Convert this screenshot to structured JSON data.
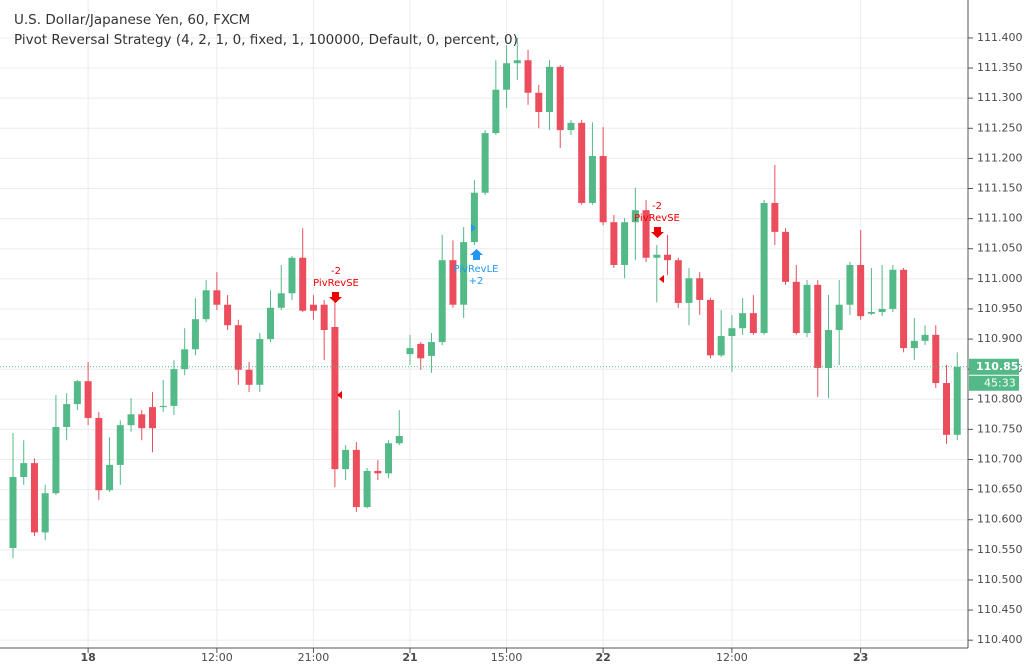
{
  "chart_data": {
    "type": "candlestick",
    "title": "U.S. Dollar/Japanese Yen, 60, FXCM",
    "subtitle": "Pivot Reversal Strategy (4, 2, 1, 0, fixed, 1, 100000, Default, 0, percent, 0)",
    "up_color": "#53b987",
    "down_color": "#eb4d5c",
    "grid": true,
    "categories": [
      null,
      null,
      null,
      null,
      null,
      null,
      null,
      "18",
      null,
      null,
      null,
      null,
      null,
      null,
      null,
      null,
      null,
      null,
      null,
      "12:00",
      null,
      null,
      null,
      null,
      null,
      null,
      null,
      null,
      "21:00",
      null,
      null,
      null,
      null,
      null,
      null,
      null,
      null,
      "21",
      null,
      null,
      null,
      null,
      null,
      null,
      null,
      null,
      "15:00",
      null,
      null,
      null,
      null,
      null,
      null,
      null,
      null,
      "22",
      null,
      null,
      null,
      null,
      null,
      null,
      null,
      null,
      null,
      null,
      null,
      "12:00",
      null,
      null,
      null,
      null,
      null,
      null,
      null,
      null,
      null,
      null,
      null,
      "23",
      null,
      null,
      null,
      null,
      null,
      null,
      null,
      null,
      null
    ],
    "open": [
      110.553,
      110.671,
      110.694,
      110.579,
      110.644,
      110.754,
      110.792,
      110.83,
      110.769,
      110.649,
      110.691,
      110.757,
      110.775,
      110.787,
      110.787,
      110.789,
      110.85,
      110.883,
      110.933,
      110.981,
      110.957,
      110.923,
      110.849,
      110.824,
      110.9,
      110.952,
      110.976,
      111.035,
      110.957,
      110.957,
      110.92,
      110.684,
      110.716,
      110.621,
      110.681,
      110.677,
      110.727,
      110.875,
      110.892,
      110.872,
      110.895,
      111.031,
      110.957,
      111.061,
      111.143,
      111.242,
      111.314,
      111.358,
      111.363,
      111.309,
      111.277,
      111.352,
      111.247,
      111.259,
      111.126,
      111.204,
      111.094,
      111.023,
      111.094,
      111.114,
      111.035,
      111.04,
      111.031,
      110.96,
      111.001,
      110.965,
      110.873,
      110.905,
      110.918,
      110.943,
      110.91,
      111.126,
      111.078,
      110.995,
      110.91,
      110.99,
      110.852,
      110.915,
      110.957,
      111.023,
      110.942,
      110.945,
      110.95,
      111.015,
      110.885,
      110.897,
      110.907,
      110.827,
      110.741
    ],
    "high": [
      110.744,
      110.732,
      110.702,
      110.658,
      110.807,
      110.81,
      110.832,
      110.862,
      110.779,
      110.737,
      110.765,
      110.802,
      110.782,
      110.812,
      110.832,
      110.865,
      110.918,
      110.968,
      110.998,
      111.011,
      110.973,
      110.932,
      110.862,
      110.91,
      110.981,
      111.023,
      111.038,
      111.084,
      110.973,
      110.965,
      110.965,
      110.724,
      110.729,
      110.686,
      110.699,
      110.732,
      110.782,
      110.907,
      110.895,
      110.91,
      111.073,
      111.064,
      111.086,
      111.164,
      111.247,
      111.363,
      111.388,
      111.4,
      111.38,
      111.322,
      111.363,
      111.355,
      111.264,
      111.264,
      111.26,
      111.252,
      111.106,
      111.101,
      111.151,
      111.131,
      111.056,
      111.073,
      111.035,
      111.018,
      111.011,
      110.968,
      110.948,
      110.94,
      110.968,
      110.973,
      111.131,
      111.189,
      111.084,
      111.023,
      110.998,
      110.998,
      110.973,
      110.998,
      111.028,
      111.081,
      111.018,
      111.023,
      111.023,
      111.018,
      110.935,
      110.923,
      110.923,
      110.857,
      110.878
    ],
    "low": [
      110.536,
      110.658,
      110.573,
      110.566,
      110.641,
      110.732,
      110.782,
      110.757,
      110.633,
      110.646,
      110.658,
      110.746,
      110.732,
      110.712,
      110.779,
      110.774,
      110.84,
      110.873,
      110.928,
      110.948,
      110.915,
      110.824,
      110.812,
      110.812,
      110.895,
      110.948,
      110.965,
      110.945,
      110.932,
      110.865,
      110.654,
      110.666,
      110.613,
      110.619,
      110.666,
      110.669,
      110.724,
      110.857,
      110.849,
      110.844,
      110.89,
      110.952,
      110.935,
      111.056,
      111.139,
      111.239,
      111.284,
      111.33,
      111.289,
      111.25,
      111.247,
      111.217,
      111.239,
      111.123,
      111.123,
      111.089,
      111.018,
      111.001,
      111.031,
      111.028,
      110.961,
      111.006,
      110.952,
      110.923,
      110.94,
      110.868,
      110.87,
      110.845,
      110.907,
      110.907,
      110.907,
      111.056,
      110.99,
      110.907,
      110.903,
      110.804,
      110.802,
      110.857,
      110.94,
      110.932,
      110.94,
      110.938,
      110.945,
      110.878,
      110.865,
      110.89,
      110.819,
      110.726,
      110.732
    ],
    "close": [
      110.671,
      110.694,
      110.579,
      110.644,
      110.754,
      110.792,
      110.83,
      110.769,
      110.649,
      110.691,
      110.757,
      110.775,
      110.752,
      110.752,
      110.789,
      110.85,
      110.883,
      110.933,
      110.981,
      110.957,
      110.923,
      110.849,
      110.824,
      110.9,
      110.952,
      110.976,
      111.035,
      110.947,
      110.947,
      110.915,
      110.684,
      110.716,
      110.621,
      110.681,
      110.677,
      110.727,
      110.739,
      110.885,
      110.868,
      110.895,
      111.031,
      110.957,
      111.061,
      111.143,
      111.242,
      111.314,
      111.358,
      111.363,
      111.309,
      111.277,
      111.352,
      111.247,
      111.259,
      111.126,
      111.204,
      111.094,
      111.023,
      111.094,
      111.114,
      111.035,
      111.04,
      111.031,
      110.96,
      111.001,
      110.965,
      110.873,
      110.905,
      110.918,
      110.943,
      110.91,
      111.126,
      111.078,
      110.995,
      110.91,
      110.99,
      110.852,
      110.915,
      110.957,
      111.023,
      110.938,
      110.945,
      110.95,
      111.015,
      110.885,
      110.897,
      110.907,
      110.827,
      110.741,
      110.854
    ],
    "ylim": [
      110.387,
      111.463
    ],
    "yticks": [
      {
        "value": 110.4,
        "label": "110.400"
      },
      {
        "value": 110.45,
        "label": "110.450"
      },
      {
        "value": 110.5,
        "label": "110.500"
      },
      {
        "value": 110.55,
        "label": "110.550"
      },
      {
        "value": 110.6,
        "label": "110.600"
      },
      {
        "value": 110.65,
        "label": "110.650"
      },
      {
        "value": 110.7,
        "label": "110.700"
      },
      {
        "value": 110.75,
        "label": "110.750"
      },
      {
        "value": 110.8,
        "label": "110.800"
      },
      {
        "value": 110.85,
        "label": "110.850"
      },
      {
        "value": 110.9,
        "label": "110.900"
      },
      {
        "value": 110.95,
        "label": "110.950"
      },
      {
        "value": 111.0,
        "label": "111.000"
      },
      {
        "value": 111.05,
        "label": "111.050"
      },
      {
        "value": 111.1,
        "label": "111.100"
      },
      {
        "value": 111.15,
        "label": "111.150"
      },
      {
        "value": 111.2,
        "label": "111.200"
      },
      {
        "value": 111.25,
        "label": "111.250"
      },
      {
        "value": 111.3,
        "label": "111.300"
      },
      {
        "value": 111.35,
        "label": "111.350"
      },
      {
        "value": 111.4,
        "label": "111.400"
      }
    ],
    "countdown": "45:33",
    "annotations": [
      {
        "qty": "-2",
        "name": "PivRevSE"
      },
      {
        "name": "PivRevLE",
        "qty": "+2"
      },
      {
        "qty": "-2",
        "name": "PivRevSE"
      }
    ]
  }
}
